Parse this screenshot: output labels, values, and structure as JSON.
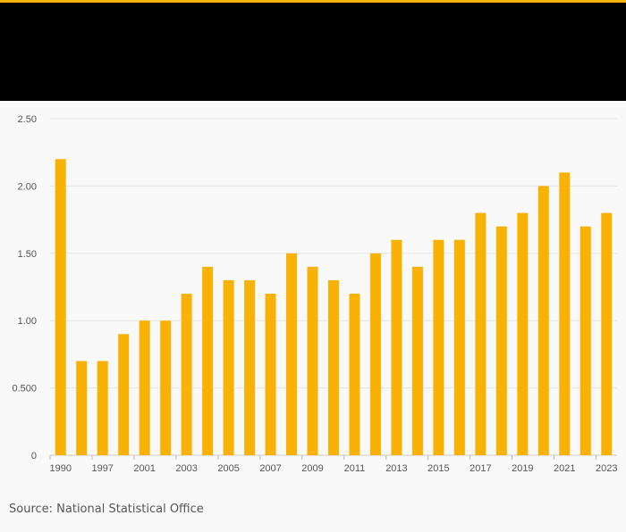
{
  "colors": {
    "accent": "#f5b400",
    "bar": "#f9b104",
    "header_background": "#000000",
    "background": "#f9f9f9",
    "grid": "#e6e6e6"
  },
  "source_text": "Source: National Statistical Office",
  "chart_data": {
    "type": "bar",
    "title": "",
    "xlabel": "",
    "ylabel": "",
    "ylim": [
      0,
      2.5
    ],
    "yticks": [
      "0",
      "0.500",
      "1.00",
      "1.50",
      "2.00",
      "2.50"
    ],
    "grid": true,
    "categories": [
      "1990",
      "",
      "1997",
      "",
      "2001",
      "",
      "2003",
      "",
      "2005",
      "",
      "2007",
      "",
      "2009",
      "",
      "2011",
      "",
      "2013",
      "",
      "2015",
      "",
      "2017",
      "",
      "2019",
      "",
      "2021",
      "",
      "2023"
    ],
    "values": [
      2.2,
      0.7,
      0.7,
      0.9,
      1.0,
      1.0,
      1.2,
      1.4,
      1.3,
      1.3,
      1.2,
      1.5,
      1.4,
      1.3,
      1.2,
      1.5,
      1.6,
      1.4,
      1.6,
      1.6,
      1.8,
      1.7,
      1.8,
      2.0,
      2.1,
      1.7,
      1.8
    ]
  }
}
